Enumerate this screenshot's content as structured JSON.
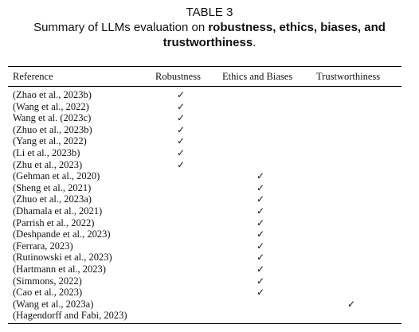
{
  "caption": {
    "label": "TABLE 3",
    "line1_prefix": "Summary of LLMs evaluation on ",
    "line1_bold": "robustness, ethics, biases, and",
    "line2_bold": "trustworthiness",
    "line2_suffix": "."
  },
  "table": {
    "headers": [
      "Reference",
      "Robustness",
      "Ethics and Biases",
      "Trustworthiness"
    ],
    "check_mark": "✓",
    "rows": [
      {
        "reference": "(Zhao et al., 2023b)",
        "robustness": true,
        "ethics_biases": false,
        "trustworthiness": false
      },
      {
        "reference": "(Wang et al., 2022)",
        "robustness": true,
        "ethics_biases": false,
        "trustworthiness": false
      },
      {
        "reference": "Wang et al. (2023c)",
        "robustness": true,
        "ethics_biases": false,
        "trustworthiness": false
      },
      {
        "reference": "(Zhuo et al., 2023b)",
        "robustness": true,
        "ethics_biases": false,
        "trustworthiness": false
      },
      {
        "reference": "(Yang et al., 2022)",
        "robustness": true,
        "ethics_biases": false,
        "trustworthiness": false
      },
      {
        "reference": "(Li et al., 2023b)",
        "robustness": true,
        "ethics_biases": false,
        "trustworthiness": false
      },
      {
        "reference": "(Zhu et al., 2023)",
        "robustness": true,
        "ethics_biases": false,
        "trustworthiness": false
      },
      {
        "reference": "(Gehman et al., 2020)",
        "robustness": false,
        "ethics_biases": true,
        "trustworthiness": false
      },
      {
        "reference": "(Sheng et al., 2021)",
        "robustness": false,
        "ethics_biases": true,
        "trustworthiness": false
      },
      {
        "reference": "(Zhuo et al., 2023a)",
        "robustness": false,
        "ethics_biases": true,
        "trustworthiness": false
      },
      {
        "reference": "(Dhamala et al., 2021)",
        "robustness": false,
        "ethics_biases": true,
        "trustworthiness": false
      },
      {
        "reference": "(Parrish et al., 2022)",
        "robustness": false,
        "ethics_biases": true,
        "trustworthiness": false
      },
      {
        "reference": "(Deshpande et al., 2023)",
        "robustness": false,
        "ethics_biases": true,
        "trustworthiness": false
      },
      {
        "reference": "(Ferrara, 2023)",
        "robustness": false,
        "ethics_biases": true,
        "trustworthiness": false
      },
      {
        "reference": "(Rutinowski et al., 2023)",
        "robustness": false,
        "ethics_biases": true,
        "trustworthiness": false
      },
      {
        "reference": "(Hartmann et al., 2023)",
        "robustness": false,
        "ethics_biases": true,
        "trustworthiness": false
      },
      {
        "reference": "(Simmons, 2022)",
        "robustness": false,
        "ethics_biases": true,
        "trustworthiness": false
      },
      {
        "reference": "(Cao et al., 2023)",
        "robustness": false,
        "ethics_biases": true,
        "trustworthiness": false
      },
      {
        "reference": "(Wang et al., 2023a)",
        "robustness": false,
        "ethics_biases": false,
        "trustworthiness": true
      },
      {
        "reference": "(Hagendorff and Fabi, 2023)",
        "robustness": false,
        "ethics_biases": false,
        "trustworthiness": false
      }
    ]
  }
}
